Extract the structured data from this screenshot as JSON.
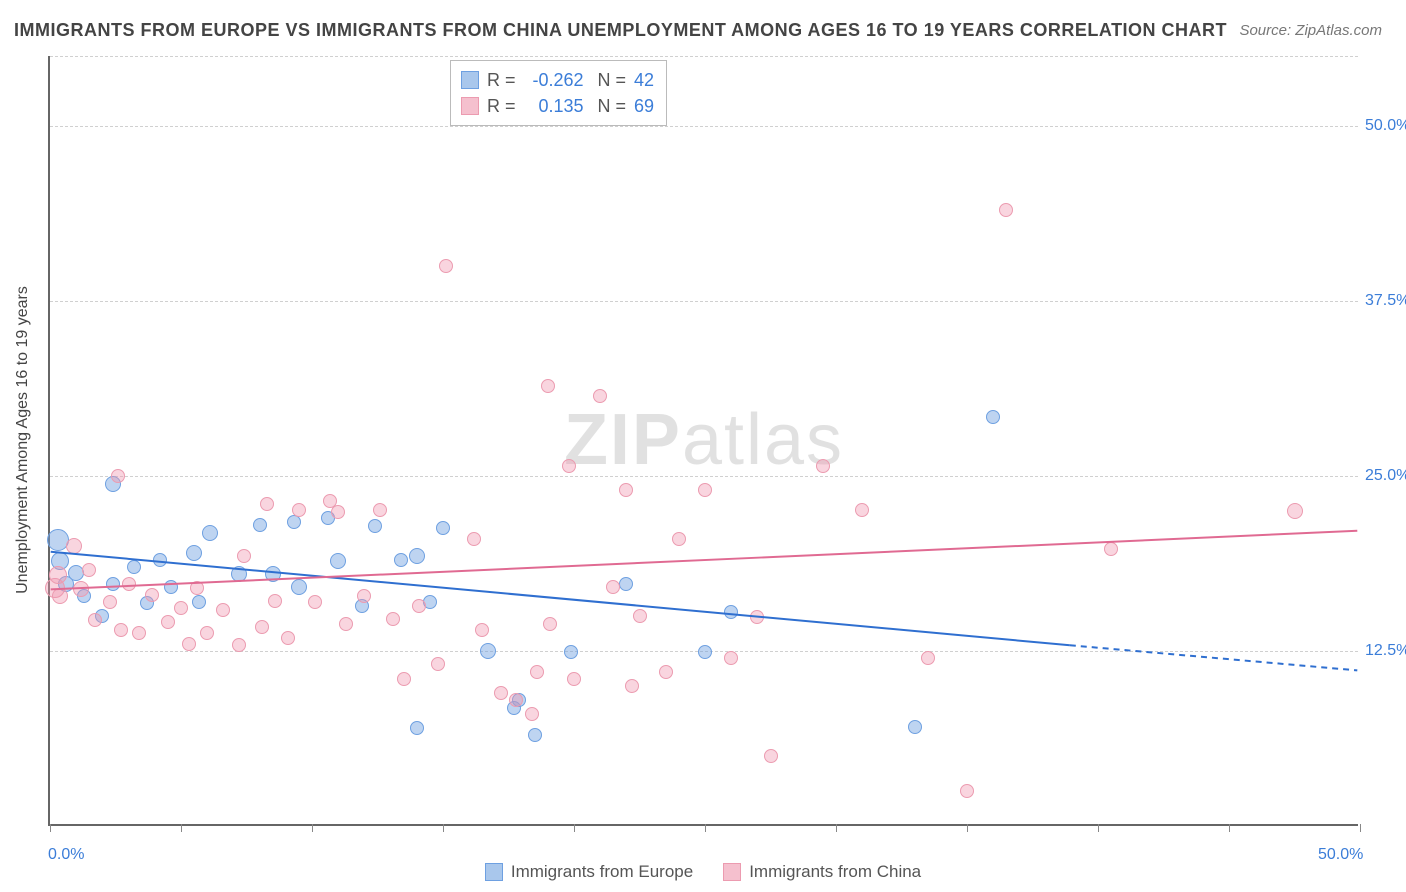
{
  "title": "IMMIGRANTS FROM EUROPE VS IMMIGRANTS FROM CHINA UNEMPLOYMENT AMONG AGES 16 TO 19 YEARS CORRELATION CHART",
  "source": "Source: ZipAtlas.com",
  "y_axis_label": "Unemployment Among Ages 16 to 19 years",
  "watermark_bold": "ZIP",
  "watermark_rest": "atlas",
  "chart": {
    "type": "scatter",
    "xlim": [
      0,
      50
    ],
    "ylim": [
      0,
      55
    ],
    "x_tick_positions": [
      0,
      5,
      10,
      15,
      20,
      25,
      30,
      35,
      40,
      45,
      50
    ],
    "x_tick_labels_shown": {
      "0": "0.0%",
      "50": "50.0%"
    },
    "y_grid_positions": [
      12.5,
      25,
      37.5,
      50,
      55
    ],
    "y_tick_labels": {
      "12.5": "12.5%",
      "25": "25.0%",
      "37.5": "37.5%",
      "50": "50.0%"
    },
    "background_color": "#ffffff",
    "grid_color": "#d0d0d0",
    "axis_color": "#666666",
    "label_color_axis": "#3b7dd8",
    "series": [
      {
        "name": "Immigrants from Europe",
        "color_fill": "rgba(110,160,225,0.45)",
        "color_stroke": "#6ea0e1",
        "swatch_fill": "#a9c7ec",
        "swatch_border": "#6ea0e1",
        "R": "-0.262",
        "N": "42",
        "trend": {
          "x1": 0,
          "y1": 19.5,
          "x2": 39,
          "y2": 12.8,
          "x2_dash": 50,
          "y2_dash": 11.0,
          "color": "#2f6fd0",
          "width": 2
        },
        "points": [
          {
            "x": 0.3,
            "y": 20.4,
            "r": 11
          },
          {
            "x": 0.4,
            "y": 18.9,
            "r": 9
          },
          {
            "x": 0.6,
            "y": 17.3,
            "r": 8
          },
          {
            "x": 1.0,
            "y": 18.1,
            "r": 8
          },
          {
            "x": 1.3,
            "y": 16.4,
            "r": 7
          },
          {
            "x": 2.4,
            "y": 24.4,
            "r": 8
          },
          {
            "x": 2.0,
            "y": 15.0,
            "r": 7
          },
          {
            "x": 2.4,
            "y": 17.3,
            "r": 7
          },
          {
            "x": 3.2,
            "y": 18.5,
            "r": 7
          },
          {
            "x": 3.7,
            "y": 15.9,
            "r": 7
          },
          {
            "x": 4.2,
            "y": 19.0,
            "r": 7
          },
          {
            "x": 4.6,
            "y": 17.1,
            "r": 7
          },
          {
            "x": 5.5,
            "y": 19.5,
            "r": 8
          },
          {
            "x": 5.7,
            "y": 16.0,
            "r": 7
          },
          {
            "x": 6.1,
            "y": 20.9,
            "r": 8
          },
          {
            "x": 7.2,
            "y": 18.0,
            "r": 8
          },
          {
            "x": 8.0,
            "y": 21.5,
            "r": 7
          },
          {
            "x": 8.5,
            "y": 18.0,
            "r": 8
          },
          {
            "x": 9.3,
            "y": 21.7,
            "r": 7
          },
          {
            "x": 9.5,
            "y": 17.1,
            "r": 8
          },
          {
            "x": 10.6,
            "y": 22.0,
            "r": 7
          },
          {
            "x": 11.0,
            "y": 18.9,
            "r": 8
          },
          {
            "x": 11.9,
            "y": 15.7,
            "r": 7
          },
          {
            "x": 12.4,
            "y": 21.4,
            "r": 7
          },
          {
            "x": 13.4,
            "y": 19.0,
            "r": 7
          },
          {
            "x": 14.0,
            "y": 19.3,
            "r": 8
          },
          {
            "x": 14.5,
            "y": 16.0,
            "r": 7
          },
          {
            "x": 15.0,
            "y": 21.3,
            "r": 7
          },
          {
            "x": 14.0,
            "y": 7.0,
            "r": 7
          },
          {
            "x": 16.7,
            "y": 12.5,
            "r": 8
          },
          {
            "x": 17.7,
            "y": 8.4,
            "r": 7
          },
          {
            "x": 17.9,
            "y": 9.0,
            "r": 7
          },
          {
            "x": 18.5,
            "y": 6.5,
            "r": 7
          },
          {
            "x": 19.9,
            "y": 12.4,
            "r": 7
          },
          {
            "x": 22.0,
            "y": 17.3,
            "r": 7
          },
          {
            "x": 25.0,
            "y": 12.4,
            "r": 7
          },
          {
            "x": 26.0,
            "y": 15.3,
            "r": 7
          },
          {
            "x": 33.0,
            "y": 7.1,
            "r": 7
          },
          {
            "x": 36.0,
            "y": 29.2,
            "r": 7
          }
        ]
      },
      {
        "name": "Immigrants from China",
        "color_fill": "rgba(240,150,175,0.40)",
        "color_stroke": "#ec9bb0",
        "swatch_fill": "#f5c0ce",
        "swatch_border": "#ec9bb0",
        "R": "0.135",
        "N": "69",
        "trend": {
          "x1": 0,
          "y1": 16.8,
          "x2": 50,
          "y2": 21.0,
          "color": "#e06a92",
          "width": 2
        },
        "points": [
          {
            "x": 0.2,
            "y": 17.0,
            "r": 10
          },
          {
            "x": 0.3,
            "y": 17.9,
            "r": 9
          },
          {
            "x": 0.4,
            "y": 16.4,
            "r": 8
          },
          {
            "x": 0.9,
            "y": 20.0,
            "r": 8
          },
          {
            "x": 1.2,
            "y": 16.9,
            "r": 8
          },
          {
            "x": 1.5,
            "y": 18.3,
            "r": 7
          },
          {
            "x": 1.7,
            "y": 14.7,
            "r": 7
          },
          {
            "x": 2.6,
            "y": 25.0,
            "r": 7
          },
          {
            "x": 2.3,
            "y": 16.0,
            "r": 7
          },
          {
            "x": 2.7,
            "y": 14.0,
            "r": 7
          },
          {
            "x": 3.0,
            "y": 17.3,
            "r": 7
          },
          {
            "x": 3.4,
            "y": 13.8,
            "r": 7
          },
          {
            "x": 3.9,
            "y": 16.5,
            "r": 7
          },
          {
            "x": 4.5,
            "y": 14.6,
            "r": 7
          },
          {
            "x": 5.0,
            "y": 15.6,
            "r": 7
          },
          {
            "x": 5.3,
            "y": 13.0,
            "r": 7
          },
          {
            "x": 5.6,
            "y": 17.0,
            "r": 7
          },
          {
            "x": 6.0,
            "y": 13.8,
            "r": 7
          },
          {
            "x": 6.6,
            "y": 15.4,
            "r": 7
          },
          {
            "x": 7.2,
            "y": 12.9,
            "r": 7
          },
          {
            "x": 7.4,
            "y": 19.3,
            "r": 7
          },
          {
            "x": 8.1,
            "y": 14.2,
            "r": 7
          },
          {
            "x": 8.3,
            "y": 23.0,
            "r": 7
          },
          {
            "x": 8.6,
            "y": 16.1,
            "r": 7
          },
          {
            "x": 9.1,
            "y": 13.4,
            "r": 7
          },
          {
            "x": 9.5,
            "y": 22.6,
            "r": 7
          },
          {
            "x": 10.1,
            "y": 16.0,
            "r": 7
          },
          {
            "x": 10.7,
            "y": 23.2,
            "r": 7
          },
          {
            "x": 11.3,
            "y": 14.4,
            "r": 7
          },
          {
            "x": 11.0,
            "y": 22.4,
            "r": 7
          },
          {
            "x": 12.0,
            "y": 16.4,
            "r": 7
          },
          {
            "x": 12.6,
            "y": 22.6,
            "r": 7
          },
          {
            "x": 13.1,
            "y": 14.8,
            "r": 7
          },
          {
            "x": 13.5,
            "y": 10.5,
            "r": 7
          },
          {
            "x": 14.1,
            "y": 15.7,
            "r": 7
          },
          {
            "x": 14.8,
            "y": 11.6,
            "r": 7
          },
          {
            "x": 15.1,
            "y": 40.0,
            "r": 7
          },
          {
            "x": 16.2,
            "y": 20.5,
            "r": 7
          },
          {
            "x": 16.5,
            "y": 14.0,
            "r": 7
          },
          {
            "x": 17.2,
            "y": 9.5,
            "r": 7
          },
          {
            "x": 17.8,
            "y": 9.0,
            "r": 7
          },
          {
            "x": 18.6,
            "y": 11.0,
            "r": 7
          },
          {
            "x": 18.4,
            "y": 8.0,
            "r": 7
          },
          {
            "x": 19.0,
            "y": 31.4,
            "r": 7
          },
          {
            "x": 19.1,
            "y": 14.4,
            "r": 7
          },
          {
            "x": 19.8,
            "y": 25.7,
            "r": 7
          },
          {
            "x": 20.0,
            "y": 10.5,
            "r": 7
          },
          {
            "x": 21.0,
            "y": 30.7,
            "r": 7
          },
          {
            "x": 21.5,
            "y": 17.1,
            "r": 7
          },
          {
            "x": 22.2,
            "y": 10.0,
            "r": 7
          },
          {
            "x": 22.5,
            "y": 15.0,
            "r": 7
          },
          {
            "x": 23.5,
            "y": 11.0,
            "r": 7
          },
          {
            "x": 24.0,
            "y": 20.5,
            "r": 7
          },
          {
            "x": 22.0,
            "y": 24.0,
            "r": 7
          },
          {
            "x": 25.0,
            "y": 24.0,
            "r": 7
          },
          {
            "x": 26.0,
            "y": 12.0,
            "r": 7
          },
          {
            "x": 27.0,
            "y": 14.9,
            "r": 7
          },
          {
            "x": 27.5,
            "y": 5.0,
            "r": 7
          },
          {
            "x": 29.5,
            "y": 25.7,
            "r": 7
          },
          {
            "x": 31.0,
            "y": 22.6,
            "r": 7
          },
          {
            "x": 33.5,
            "y": 12.0,
            "r": 7
          },
          {
            "x": 35.0,
            "y": 2.5,
            "r": 7
          },
          {
            "x": 36.5,
            "y": 44.0,
            "r": 7
          },
          {
            "x": 40.5,
            "y": 19.8,
            "r": 7
          },
          {
            "x": 47.5,
            "y": 22.5,
            "r": 8
          }
        ]
      }
    ]
  },
  "legend_label_0": "Immigrants from Europe",
  "legend_label_1": "Immigrants from China"
}
